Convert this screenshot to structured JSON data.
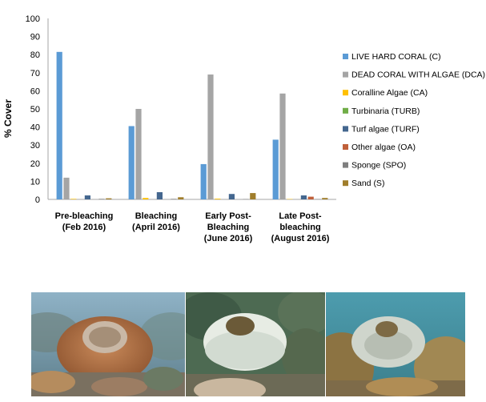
{
  "chart_data": {
    "type": "bar",
    "ylabel": "% Cover",
    "ylim": [
      0,
      100
    ],
    "yticks": [
      0,
      10,
      20,
      30,
      40,
      50,
      60,
      70,
      80,
      90,
      100
    ],
    "grid": false,
    "legend_position": "right",
    "categories": [
      [
        "Pre-bleaching",
        "(Feb 2016)"
      ],
      [
        "Bleaching",
        "(April 2016)"
      ],
      [
        "Early Post-",
        "Bleaching",
        "(June 2016)"
      ],
      [
        "Late Post-",
        "bleaching",
        "(August 2016)"
      ]
    ],
    "series": [
      {
        "name": "LIVE  HARD CORAL (C)",
        "color": "#5b9bd5",
        "values": [
          81.5,
          40.5,
          19.5,
          33
        ]
      },
      {
        "name": "DEAD CORAL WITH ALGAE (DCA)",
        "color": "#a5a5a5",
        "values": [
          12,
          50,
          69,
          58.5
        ]
      },
      {
        "name": "Coralline Algae (CA)",
        "color": "#ffc000",
        "values": [
          0.3,
          0.8,
          0.4,
          0.2
        ]
      },
      {
        "name": "Turbinaria (TURB)",
        "color": "#70ad47",
        "values": [
          0,
          0,
          0,
          0
        ]
      },
      {
        "name": "Turf algae (TURF)",
        "color": "#44678f",
        "values": [
          2.2,
          4,
          3,
          2.2
        ]
      },
      {
        "name": "Other algae (OA)",
        "color": "#c0603a",
        "values": [
          0,
          0,
          0,
          1.5
        ]
      },
      {
        "name": "Sponge (SPO)",
        "color": "#7f7f7f",
        "values": [
          0.3,
          0.3,
          0.2,
          0.2
        ]
      },
      {
        "name": "Sand (S)",
        "color": "#a07e2c",
        "values": [
          0.6,
          1.2,
          3.5,
          0.8
        ]
      }
    ]
  },
  "photos": [
    {
      "name": "photo-pre-bleaching"
    },
    {
      "name": "photo-bleaching"
    },
    {
      "name": "photo-post-bleaching"
    }
  ]
}
